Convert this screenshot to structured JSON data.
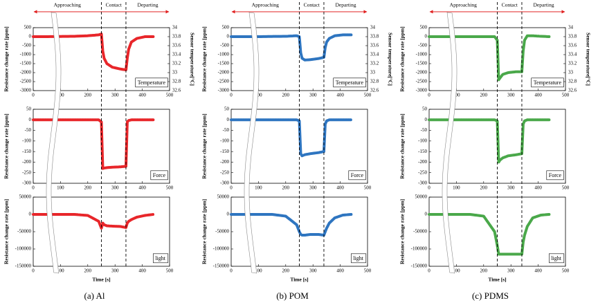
{
  "columns": [
    {
      "caption": "(a) Al",
      "phases": [
        "Approaching",
        "Contact",
        "Departing"
      ],
      "phase_boundaries": [
        250,
        340
      ]
    },
    {
      "caption": "(b) POM",
      "phases": [
        "Approaching",
        "Contact",
        "Departing"
      ],
      "phase_boundaries": [
        250,
        340
      ]
    },
    {
      "caption": "(c) PDMS",
      "phases": [
        "Approaching",
        "Contact",
        "Departing"
      ],
      "phase_boundaries": [
        250,
        340
      ]
    }
  ],
  "chart_data": [
    {
      "type": "line",
      "label": "Temperature",
      "color": "#e8262a",
      "x": [
        0,
        50,
        100,
        150,
        200,
        240,
        250,
        255,
        260,
        270,
        290,
        320,
        340,
        345,
        350,
        360,
        380,
        410,
        440
      ],
      "values": [
        0,
        0,
        10,
        20,
        50,
        100,
        150,
        -800,
        -1200,
        -1500,
        -1700,
        -1800,
        -1850,
        -1200,
        -700,
        -300,
        -100,
        0,
        0
      ],
      "xlim": [
        0,
        500
      ],
      "xticks": [
        0,
        100,
        200,
        300,
        400,
        500
      ],
      "ylim": [
        -3000,
        500
      ],
      "yticks": [
        500,
        0,
        -500,
        -1000,
        -1500,
        -2000,
        -2500,
        -3000
      ],
      "y_label": "Resistance change rate [ppm]",
      "y2lim": [
        32.6,
        34
      ],
      "y2ticks": [
        34,
        33.8,
        33.6,
        33.4,
        33.2,
        33,
        32.8,
        32.6
      ],
      "y2_label": "Sensor temperature[°C]"
    },
    {
      "type": "line",
      "label": "Force",
      "color": "#e8262a",
      "x": [
        0,
        50,
        100,
        150,
        200,
        240,
        250,
        255,
        260,
        270,
        290,
        320,
        340,
        345,
        350,
        360,
        380,
        410,
        440
      ],
      "values": [
        0,
        0,
        0,
        0,
        0,
        0,
        -10,
        -230,
        -228,
        -226,
        -224,
        -222,
        -220,
        -10,
        -3,
        0,
        0,
        0,
        0
      ],
      "xlim": [
        0,
        500
      ],
      "xticks": [
        0,
        100,
        200,
        300,
        400,
        500
      ],
      "ylim": [
        -300,
        50
      ],
      "yticks": [
        50,
        0,
        -50,
        -100,
        -150,
        -200,
        -250,
        -300
      ],
      "y_label": "Resistance change rate [ppm]"
    },
    {
      "type": "line",
      "label": "light",
      "color": "#e8262a",
      "x": [
        0,
        50,
        100,
        150,
        200,
        240,
        250,
        255,
        260,
        270,
        290,
        320,
        340,
        345,
        350,
        360,
        380,
        410,
        440
      ],
      "values": [
        0,
        0,
        0,
        0,
        -3000,
        -20000,
        -40000,
        -25000,
        -30000,
        -33000,
        -34000,
        -35000,
        -38000,
        -25000,
        -20000,
        -15000,
        -8000,
        -3000,
        0
      ],
      "xlim": [
        0,
        500
      ],
      "xticks": [
        0,
        100,
        200,
        300,
        400,
        500
      ],
      "ylim": [
        -150000,
        50000
      ],
      "yticks": [
        50000,
        0,
        -50000,
        -100000,
        -150000
      ],
      "y_label": "Resistance change rate [ppm]",
      "x_label": "Time [s]"
    },
    {
      "type": "line",
      "label": "Temperature",
      "color": "#2e75c0",
      "x": [
        0,
        50,
        100,
        150,
        200,
        240,
        250,
        255,
        260,
        270,
        290,
        320,
        340,
        345,
        350,
        360,
        380,
        410,
        440
      ],
      "values": [
        0,
        0,
        0,
        10,
        20,
        50,
        0,
        -900,
        -1200,
        -1300,
        -1280,
        -1220,
        -1150,
        -600,
        -300,
        -100,
        50,
        100,
        100
      ],
      "xlim": [
        0,
        500
      ],
      "xticks": [
        0,
        100,
        200,
        300,
        400,
        500
      ],
      "ylim": [
        -3000,
        500
      ],
      "yticks": [
        500,
        0,
        -500,
        -1000,
        -1500,
        -2000,
        -2500,
        -3000
      ],
      "y_label": "Resistance change rate [ppm]",
      "y2lim": [
        32.6,
        34
      ],
      "y2ticks": [
        34,
        33.8,
        33.6,
        33.4,
        33.2,
        33,
        32.8,
        32.6
      ],
      "y2_label": "Sensor temperature[°C]"
    },
    {
      "type": "line",
      "label": "Force",
      "color": "#2e75c0",
      "x": [
        0,
        50,
        100,
        150,
        200,
        240,
        250,
        255,
        260,
        270,
        290,
        320,
        340,
        345,
        350,
        360,
        380,
        410,
        440
      ],
      "values": [
        0,
        0,
        0,
        0,
        0,
        0,
        -5,
        -160,
        -170,
        -165,
        -160,
        -155,
        -150,
        -20,
        -5,
        0,
        0,
        0,
        0
      ],
      "xlim": [
        0,
        500
      ],
      "xticks": [
        0,
        100,
        200,
        300,
        400,
        500
      ],
      "ylim": [
        -300,
        50
      ],
      "yticks": [
        50,
        0,
        -50,
        -100,
        -150,
        -200,
        -250,
        -300
      ],
      "y_label": "Resistance change rate [ppm]"
    },
    {
      "type": "line",
      "label": "light",
      "color": "#2e75c0",
      "x": [
        0,
        50,
        100,
        150,
        200,
        240,
        250,
        255,
        260,
        270,
        290,
        320,
        340,
        345,
        350,
        360,
        380,
        410,
        440
      ],
      "values": [
        0,
        0,
        0,
        0,
        -5000,
        -30000,
        -50000,
        -58000,
        -60000,
        -60000,
        -58000,
        -58000,
        -60000,
        -50000,
        -40000,
        -25000,
        -10000,
        -2000,
        0
      ],
      "xlim": [
        0,
        500
      ],
      "xticks": [
        0,
        100,
        200,
        300,
        400,
        500
      ],
      "ylim": [
        -150000,
        50000
      ],
      "yticks": [
        50000,
        0,
        -50000,
        -100000,
        -150000
      ],
      "y_label": "Resistance change rate [ppm]",
      "x_label": "Time [s]"
    },
    {
      "type": "line",
      "label": "Temperature",
      "color": "#4aa84a",
      "x": [
        0,
        50,
        100,
        150,
        200,
        240,
        250,
        255,
        260,
        270,
        290,
        320,
        340,
        345,
        350,
        360,
        380,
        410,
        440
      ],
      "values": [
        0,
        0,
        0,
        0,
        0,
        0,
        -200,
        -2400,
        -2300,
        -2100,
        -2000,
        -1950,
        -1950,
        -800,
        -200,
        50,
        50,
        20,
        0
      ],
      "xlim": [
        0,
        500
      ],
      "xticks": [
        0,
        100,
        200,
        300,
        400,
        500
      ],
      "ylim": [
        -3000,
        500
      ],
      "yticks": [
        500,
        0,
        -500,
        -1000,
        -1500,
        -2000,
        -2500,
        -3000
      ],
      "y_label": "Resistance change rate [ppm]",
      "y2lim": [
        32.6,
        34
      ],
      "y2ticks": [
        34,
        33.8,
        33.6,
        33.4,
        33.2,
        33,
        32.8,
        32.6
      ],
      "y2_label": "Sensor temperature[°C]"
    },
    {
      "type": "line",
      "label": "Force",
      "color": "#4aa84a",
      "x": [
        0,
        50,
        100,
        150,
        200,
        240,
        250,
        255,
        260,
        270,
        290,
        320,
        340,
        345,
        350,
        360,
        380,
        410,
        440
      ],
      "values": [
        0,
        0,
        0,
        0,
        0,
        0,
        -5,
        -200,
        -190,
        -180,
        -170,
        -165,
        -160,
        -20,
        -5,
        0,
        0,
        0,
        0
      ],
      "xlim": [
        0,
        500
      ],
      "xticks": [
        0,
        100,
        200,
        300,
        400,
        500
      ],
      "ylim": [
        -300,
        50
      ],
      "yticks": [
        50,
        0,
        -50,
        -100,
        -150,
        -200,
        -250,
        -300
      ],
      "y_label": "Resistance change rate [ppm]"
    },
    {
      "type": "line",
      "label": "light",
      "color": "#4aa84a",
      "x": [
        0,
        50,
        100,
        150,
        200,
        240,
        250,
        255,
        260,
        270,
        290,
        320,
        340,
        345,
        350,
        360,
        380,
        410,
        440
      ],
      "values": [
        0,
        0,
        0,
        0,
        -5000,
        -50000,
        -90000,
        -115000,
        -115000,
        -115000,
        -115000,
        -115000,
        -115000,
        -80000,
        -60000,
        -35000,
        -10000,
        -2000,
        0
      ],
      "xlim": [
        0,
        500
      ],
      "xticks": [
        0,
        100,
        200,
        300,
        400,
        500
      ],
      "ylim": [
        -150000,
        50000
      ],
      "yticks": [
        50000,
        0,
        -50000,
        -100000,
        -150000
      ],
      "y_label": "Resistance change rate [ppm]",
      "x_label": "Time [s]"
    }
  ]
}
